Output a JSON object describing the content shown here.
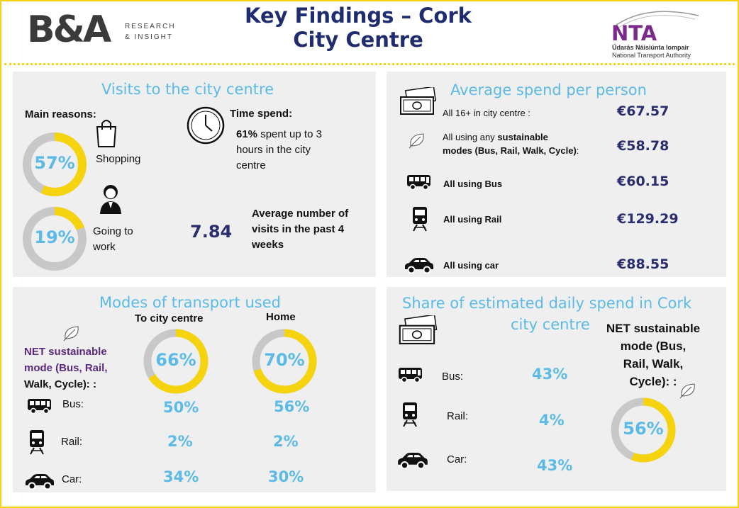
{
  "header": {
    "brand_left": "B&A",
    "brand_left_sub_1": "RESEARCH",
    "brand_left_sub_2": "& INSIGHT",
    "title_line1": "Key Findings – Cork",
    "title_line2": "City Centre",
    "brand_right": "NTA",
    "brand_right_sub_1": "Údarás Náisiúnta Iompair",
    "brand_right_sub_2": "National Transport Authority"
  },
  "colors": {
    "accent_yellow": "#f5d40f",
    "title_blue": "#5bbbe6",
    "navy": "#2a2e6e",
    "ring_grey": "#c8c8c8",
    "panel_bg": "#efefef"
  },
  "visits": {
    "title": "Visits to the city centre",
    "main_reasons_label": "Main reasons:",
    "shopping": {
      "percent": 57,
      "percent_label": "57%",
      "label": "Shopping",
      "icon": "shopping-bag-icon"
    },
    "work": {
      "percent": 19,
      "percent_label": "19%",
      "label_1": "Going to",
      "label_2": "work",
      "icon": "worker-icon"
    },
    "time_spend_label": "Time spend:",
    "time_spend_pct": "61%",
    "time_spend_text_1": " spent up to 3",
    "time_spend_text_2": "hours in the city",
    "time_spend_text_3": "centre",
    "clock_icon": "clock-icon",
    "avg_visits_value": "7.84",
    "avg_visits_text_1": "Average number of",
    "avg_visits_text_2": "visits in the past 4",
    "avg_visits_text_3": "weeks"
  },
  "spend": {
    "title": "Average spend per person",
    "rows": [
      {
        "label": "All 16+ in city centre :",
        "value": "€67.57",
        "icon": "banknote-icon"
      },
      {
        "label_1": "All using any ",
        "label_1b": "sustainable",
        "label_2": "modes (Bus, Rail, Walk, Cycle)",
        "label_2b": ":",
        "value": "€58.78",
        "icon": "leaf-icon"
      },
      {
        "label": "All using Bus",
        "value": "€60.15",
        "icon": "bus-icon"
      },
      {
        "label": "All using Rail",
        "value": "€129.29",
        "icon": "train-icon"
      },
      {
        "label": "All using car",
        "value": "€88.55",
        "icon": "car-icon"
      }
    ]
  },
  "modes": {
    "title": "Modes of transport used",
    "col_to": "To city centre",
    "col_home": "Home",
    "net_label_1": "NET sustainable",
    "net_label_2": "mode (Bus, Rail,",
    "net_label_3": "Walk, Cycle): :",
    "net_to": {
      "percent": 66,
      "label": "66%"
    },
    "net_home": {
      "percent": 70,
      "label": "70%"
    },
    "rows": [
      {
        "label": "Bus:",
        "to": "50%",
        "home": "56%",
        "icon": "bus-icon"
      },
      {
        "label": "Rail:",
        "to": "2%",
        "home": "2%",
        "icon": "train-icon"
      },
      {
        "label": "Car:",
        "to": "34%",
        "home": "30%",
        "icon": "car-icon"
      }
    ]
  },
  "share": {
    "title_1": "Share of estimated daily spend in Cork",
    "title_2": "city centre",
    "net_label_1": "NET sustainable",
    "net_label_2": "mode (Bus,",
    "net_label_3": "Rail, Walk,",
    "net_label_4": "Cycle): :",
    "net": {
      "percent": 56,
      "label": "56%"
    },
    "rows": [
      {
        "label": "Bus:",
        "value": "43%",
        "icon": "bus-icon"
      },
      {
        "label": "Rail:",
        "value": "4%",
        "icon": "train-icon"
      },
      {
        "label": "Car:",
        "value": "43%",
        "icon": "car-icon"
      }
    ]
  }
}
